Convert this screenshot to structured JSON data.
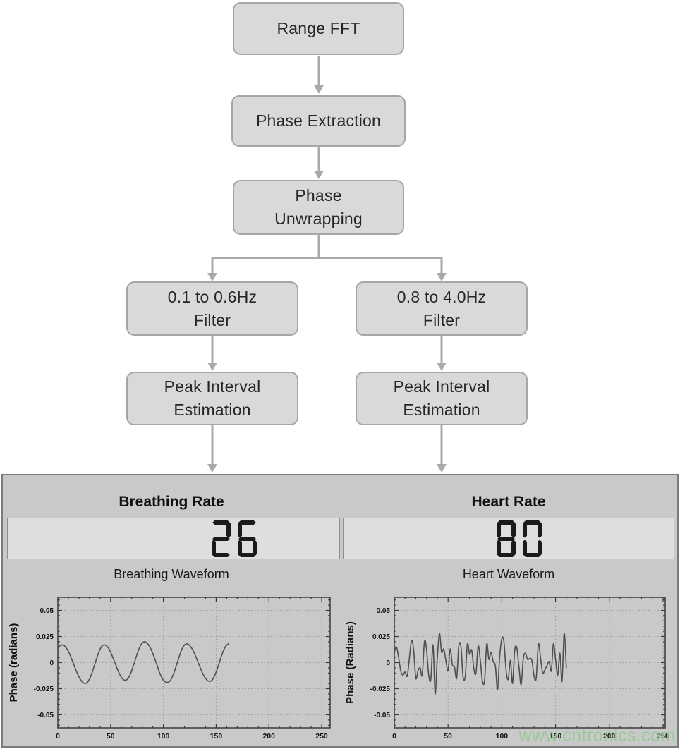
{
  "colors": {
    "box_fill": "#d9d9d9",
    "box_border": "#a6a6a6",
    "arrow": "#a9a9a9",
    "panel_bg": "#c9c9c9",
    "panel_border": "#7a7a7a",
    "display_bg": "#dedede",
    "digit": "#1a1a1a",
    "trace": "#4f4f4f",
    "watermark": "#8fc98f"
  },
  "watermark": {
    "text": "www.cntronics.com"
  },
  "flowchart": {
    "nodes": [
      {
        "id": "range-fft",
        "label": "Range FFT"
      },
      {
        "id": "phase-extraction",
        "label": "Phase Extraction"
      },
      {
        "id": "phase-unwrapping",
        "label": "Phase\nUnwrapping"
      },
      {
        "id": "breath-filter",
        "label": "0.1 to 0.6Hz\nFilter"
      },
      {
        "id": "heart-filter",
        "label": "0.8 to 4.0Hz\nFilter"
      },
      {
        "id": "breath-peak",
        "label": "Peak Interval\nEstimation"
      },
      {
        "id": "heart-peak",
        "label": "Peak Interval\nEstimation"
      }
    ]
  },
  "panel": {
    "breathing": {
      "title": "Breathing Rate",
      "value": "26"
    },
    "heart": {
      "title": "Heart Rate",
      "value": "80"
    }
  },
  "chart_data": [
    {
      "type": "line",
      "title": "Breathing Waveform",
      "xlabel": "",
      "ylabel": "Phase (radians)",
      "xlim": [
        0,
        258
      ],
      "ylim": [
        -0.0625,
        0.0625
      ],
      "x_ticks": [
        0,
        50,
        100,
        150,
        200,
        250
      ],
      "y_ticks": [
        0.05,
        0.025,
        0,
        -0.025,
        -0.05
      ],
      "y_tick_labels": [
        "0.05",
        "0.025",
        "0",
        "-0.025",
        "-0.05"
      ],
      "x_minor_step": 10,
      "y_minor_step": 0.005,
      "grid": "dotted",
      "legend": "none",
      "series": [
        {
          "name": "breathing-phase",
          "x_start": 0,
          "x_step": 2,
          "smooth": true,
          "y": [
            0.013,
            0.016,
            0.017,
            0.0163,
            0.0141,
            0.0106,
            0.0062,
            0.0011,
            -0.0041,
            -0.0092,
            -0.0136,
            -0.0171,
            -0.0193,
            -0.02,
            -0.0189,
            -0.0157,
            -0.0108,
            -0.0047,
            0.0017,
            0.0078,
            0.0127,
            0.0159,
            0.017,
            0.0162,
            0.0138,
            0.01,
            0.0053,
            0.0,
            -0.0053,
            -0.01,
            -0.0138,
            -0.0162,
            -0.017,
            -0.0159,
            -0.0127,
            -0.0078,
            -0.0017,
            0.0047,
            0.0108,
            0.0157,
            0.0189,
            0.02,
            0.0192,
            0.0169,
            0.0133,
            0.0086,
            0.0033,
            -0.0023,
            -0.0086,
            -0.0133,
            -0.0169,
            -0.0186,
            -0.019,
            -0.0179,
            -0.0147,
            -0.0098,
            -0.0037,
            0.0027,
            0.0088,
            0.0137,
            0.0169,
            0.018,
            0.0173,
            0.0151,
            0.0118,
            0.0075,
            0.0026,
            -0.0026,
            -0.0075,
            -0.0118,
            -0.0151,
            -0.0173,
            -0.018,
            -0.0169,
            -0.0138,
            -0.009,
            -0.0031,
            0.0031,
            0.009,
            0.0138,
            0.0169,
            0.018
          ]
        }
      ]
    },
    {
      "type": "line",
      "title": "Heart Waveform",
      "xlabel": "",
      "ylabel": "Phase (Radians)",
      "xlim": [
        0,
        252
      ],
      "ylim": [
        -0.0625,
        0.0625
      ],
      "x_ticks": [
        0,
        50,
        100,
        150,
        200,
        250
      ],
      "y_ticks": [
        0.05,
        0.025,
        0,
        -0.025,
        -0.05
      ],
      "y_tick_labels": [
        "0.05",
        "0.025",
        "0",
        "-0.025",
        "-0.05"
      ],
      "x_minor_step": 10,
      "y_minor_step": 0.005,
      "grid": "dotted",
      "legend": "none",
      "series": [
        {
          "name": "heart-phase",
          "x_start": 0,
          "x_step": 2,
          "smooth": true,
          "y": [
            0.01,
            0.015,
            0.005,
            -0.008,
            -0.012,
            -0.009,
            -0.013,
            0.004,
            0.021,
            0.012,
            -0.015,
            -0.008,
            -0.005,
            -0.012,
            0.02,
            0.013,
            -0.012,
            -0.016,
            0.017,
            -0.03,
            0.005,
            0.028,
            0.01,
            0.013,
            0.002,
            -0.008,
            0.013,
            -0.002,
            -0.004,
            -0.015,
            0.016,
            0.015,
            -0.014,
            -0.013,
            0.018,
            0.008,
            0.012,
            -0.006,
            -0.01,
            0.016,
            0.002,
            -0.018,
            -0.017,
            0.018,
            0.003,
            0.01,
            0.001,
            -0.003,
            -0.026,
            0.005,
            0.023,
            0.02,
            -0.008,
            -0.016,
            0.002,
            -0.02,
            0.012,
            0.014,
            -0.005,
            -0.021,
            0.004,
            0.009,
            0.003,
            0.004,
            0.002,
            -0.013,
            -0.015,
            0.018,
            0.005,
            -0.01,
            -0.007,
            -0.003,
            0.001,
            -0.008,
            0.018,
            0.003,
            -0.012,
            0.009,
            -0.018,
            0.028,
            -0.005
          ]
        }
      ]
    }
  ]
}
